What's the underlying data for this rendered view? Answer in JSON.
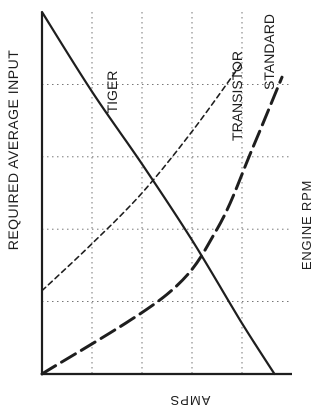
{
  "chart_data": {
    "type": "line",
    "title": "",
    "ylabel": "REQUIRED AVERAGE INPUT",
    "xlabel": "AMPS",
    "right_label": "ENGINE RPM",
    "orientation": "rotated-90-clockwise",
    "grid": true,
    "xlim": [
      0,
      1
    ],
    "ylim": [
      0,
      1
    ],
    "series": [
      {
        "name": "TIGER",
        "style": "solid",
        "x": [
          0.0,
          0.2,
          0.4,
          0.6,
          0.8,
          0.93
        ],
        "y": [
          1.0,
          0.78,
          0.58,
          0.37,
          0.14,
          0.0
        ]
      },
      {
        "name": "TRANSISTOR",
        "style": "long-dash",
        "x": [
          0.0,
          0.5,
          0.7,
          0.84,
          0.96
        ],
        "y": [
          0.0,
          0.22,
          0.4,
          0.62,
          0.82
        ]
      },
      {
        "name": "STANDARD",
        "style": "short-dash",
        "x": [
          0.0,
          0.2,
          0.4,
          0.6,
          0.8
        ],
        "y": [
          0.23,
          0.36,
          0.5,
          0.67,
          0.86
        ]
      }
    ],
    "colors": {
      "line": "#1e1e1e",
      "grid": "#666666",
      "background": "#ffffff"
    }
  }
}
